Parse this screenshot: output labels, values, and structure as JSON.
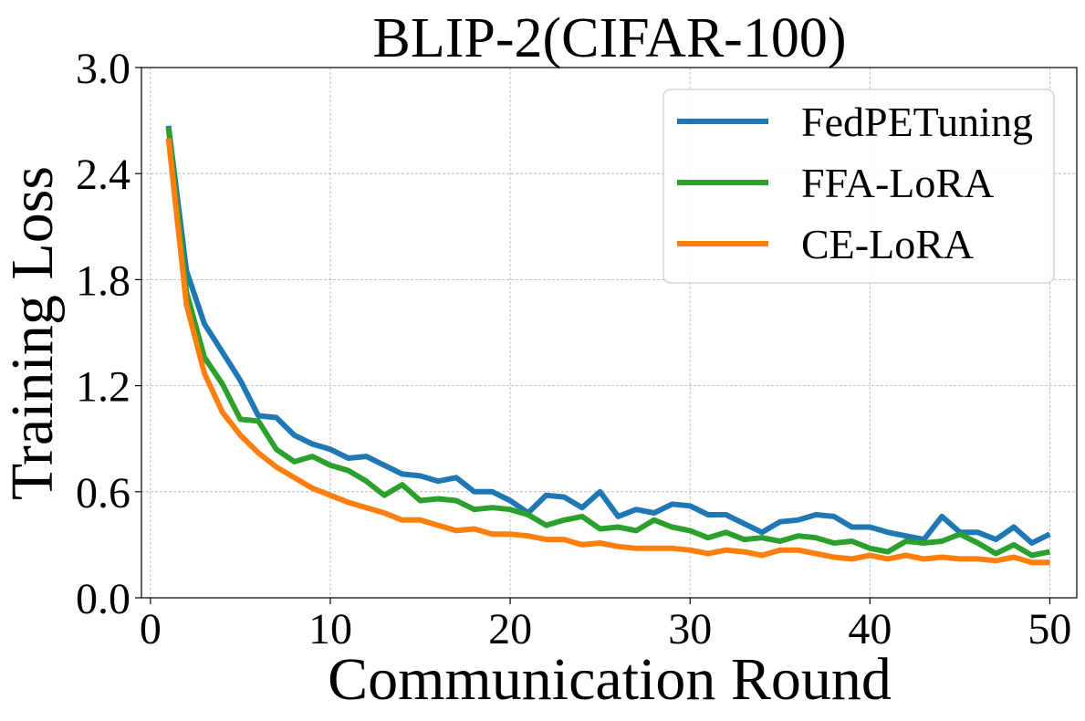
{
  "chart_data": {
    "type": "line",
    "title": "BLIP-2(CIFAR-100)",
    "xlabel": "Communication Round",
    "ylabel": "Training Loss",
    "xlim": [
      -0.5,
      51.5
    ],
    "ylim": [
      0.0,
      3.0
    ],
    "xticks": [
      0,
      10,
      20,
      30,
      40,
      50
    ],
    "xtick_labels": [
      "0",
      "10",
      "20",
      "30",
      "40",
      "50"
    ],
    "yticks": [
      0.0,
      0.6,
      1.2,
      1.8,
      2.4,
      3.0
    ],
    "ytick_labels": [
      "0.0",
      "0.6",
      "1.2",
      "1.8",
      "2.4",
      "3.0"
    ],
    "grid": true,
    "legend_position": "top-right",
    "x": [
      1,
      2,
      3,
      4,
      5,
      6,
      7,
      8,
      9,
      10,
      11,
      12,
      13,
      14,
      15,
      16,
      17,
      18,
      19,
      20,
      21,
      22,
      23,
      24,
      25,
      26,
      27,
      28,
      29,
      30,
      31,
      32,
      33,
      34,
      35,
      36,
      37,
      38,
      39,
      40,
      41,
      42,
      43,
      44,
      45,
      46,
      47,
      48,
      49,
      50
    ],
    "series": [
      {
        "name": "FedPETuning",
        "color": "#1f77b4",
        "values": [
          2.67,
          1.85,
          1.55,
          1.39,
          1.23,
          1.03,
          1.02,
          0.92,
          0.87,
          0.84,
          0.79,
          0.8,
          0.75,
          0.7,
          0.69,
          0.66,
          0.68,
          0.6,
          0.6,
          0.55,
          0.48,
          0.58,
          0.57,
          0.51,
          0.6,
          0.46,
          0.5,
          0.48,
          0.53,
          0.52,
          0.47,
          0.47,
          0.42,
          0.37,
          0.43,
          0.44,
          0.47,
          0.46,
          0.4,
          0.4,
          0.37,
          0.35,
          0.33,
          0.46,
          0.37,
          0.37,
          0.33,
          0.4,
          0.31,
          0.36
        ]
      },
      {
        "name": "FFA-LoRA",
        "color": "#2ca02c",
        "values": [
          2.66,
          1.73,
          1.36,
          1.21,
          1.01,
          1.0,
          0.84,
          0.77,
          0.8,
          0.75,
          0.72,
          0.66,
          0.58,
          0.64,
          0.55,
          0.56,
          0.55,
          0.5,
          0.51,
          0.5,
          0.47,
          0.41,
          0.44,
          0.46,
          0.39,
          0.4,
          0.38,
          0.44,
          0.4,
          0.38,
          0.34,
          0.37,
          0.33,
          0.34,
          0.32,
          0.35,
          0.34,
          0.31,
          0.32,
          0.28,
          0.26,
          0.32,
          0.31,
          0.32,
          0.36,
          0.31,
          0.25,
          0.3,
          0.24,
          0.26
        ]
      },
      {
        "name": "CE-LoRA",
        "color": "#ff7f0e",
        "values": [
          2.6,
          1.66,
          1.27,
          1.05,
          0.92,
          0.82,
          0.74,
          0.68,
          0.62,
          0.58,
          0.54,
          0.51,
          0.48,
          0.44,
          0.44,
          0.41,
          0.38,
          0.39,
          0.36,
          0.36,
          0.35,
          0.33,
          0.33,
          0.3,
          0.31,
          0.29,
          0.28,
          0.28,
          0.28,
          0.27,
          0.25,
          0.27,
          0.26,
          0.24,
          0.27,
          0.27,
          0.25,
          0.23,
          0.22,
          0.24,
          0.22,
          0.24,
          0.22,
          0.23,
          0.22,
          0.22,
          0.21,
          0.23,
          0.2,
          0.2
        ]
      }
    ]
  }
}
